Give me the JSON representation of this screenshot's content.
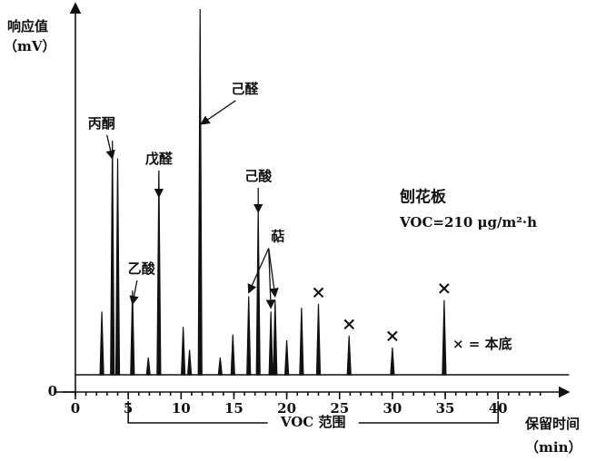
{
  "chart_data": {
    "type": "chromatogram",
    "y_label": "响应值",
    "y_unit": "（mV）",
    "x_label": "保留时间",
    "x_unit": "（min）",
    "xlim": [
      0,
      45
    ],
    "xticks": [
      0,
      5,
      10,
      15,
      20,
      25,
      30,
      35,
      40
    ],
    "ylim": [
      0,
      100
    ],
    "yticks": [
      0
    ],
    "color": "#111111",
    "baseline": 4.5,
    "peaks": [
      {
        "x": 2.5,
        "height": 21
      },
      {
        "x": 3.5,
        "height": 65.6
      },
      {
        "x": 4.0,
        "height": 61
      },
      {
        "x": 5.4,
        "height": 26.5
      },
      {
        "x": 6.9,
        "height": 9
      },
      {
        "x": 7.9,
        "height": 57
      },
      {
        "x": 10.2,
        "height": 17
      },
      {
        "x": 10.8,
        "height": 11
      },
      {
        "x": 11.8,
        "height": 100
      },
      {
        "x": 13.7,
        "height": 9
      },
      {
        "x": 14.9,
        "height": 15
      },
      {
        "x": 16.4,
        "height": 25
      },
      {
        "x": 17.3,
        "height": 48
      },
      {
        "x": 18.5,
        "height": 21
      },
      {
        "x": 18.9,
        "height": 24
      },
      {
        "x": 20.0,
        "height": 13.5
      },
      {
        "x": 21.4,
        "height": 22
      },
      {
        "x": 23.0,
        "height": 23
      },
      {
        "x": 25.9,
        "height": 14.7
      },
      {
        "x": 30.0,
        "height": 11.6
      },
      {
        "x": 34.9,
        "height": 24
      }
    ],
    "annotations": [
      {
        "text": "丙酮",
        "points": [
          [
            3.5,
            60
          ]
        ]
      },
      {
        "text": "乙酸",
        "points": [
          [
            5.4,
            22
          ]
        ]
      },
      {
        "text": "戊醛",
        "points": [
          [
            7.9,
            50
          ]
        ]
      },
      {
        "text": "己醛",
        "points": [
          [
            11.9,
            69
          ]
        ]
      },
      {
        "text": "己酸",
        "points": [
          [
            17.3,
            46
          ]
        ]
      },
      {
        "text": "萜",
        "points": [
          [
            16.4,
            25
          ],
          [
            18.5,
            21
          ],
          [
            18.9,
            24
          ]
        ]
      },
      {
        "text": "×",
        "points": [
          [
            23.0,
            23
          ]
        ]
      },
      {
        "text": "×",
        "points": [
          [
            25.9,
            14.7
          ]
        ]
      },
      {
        "text": "×",
        "points": [
          [
            30.0,
            11.6
          ]
        ]
      },
      {
        "text": "×",
        "points": [
          [
            34.9,
            24
          ]
        ]
      }
    ],
    "legend_text": "× = 本底",
    "sample": "刨花板",
    "emission": "VOC=210 μg/m²·h",
    "voc_range": [
      5,
      40
    ],
    "voc_label": "VOC 范围"
  }
}
